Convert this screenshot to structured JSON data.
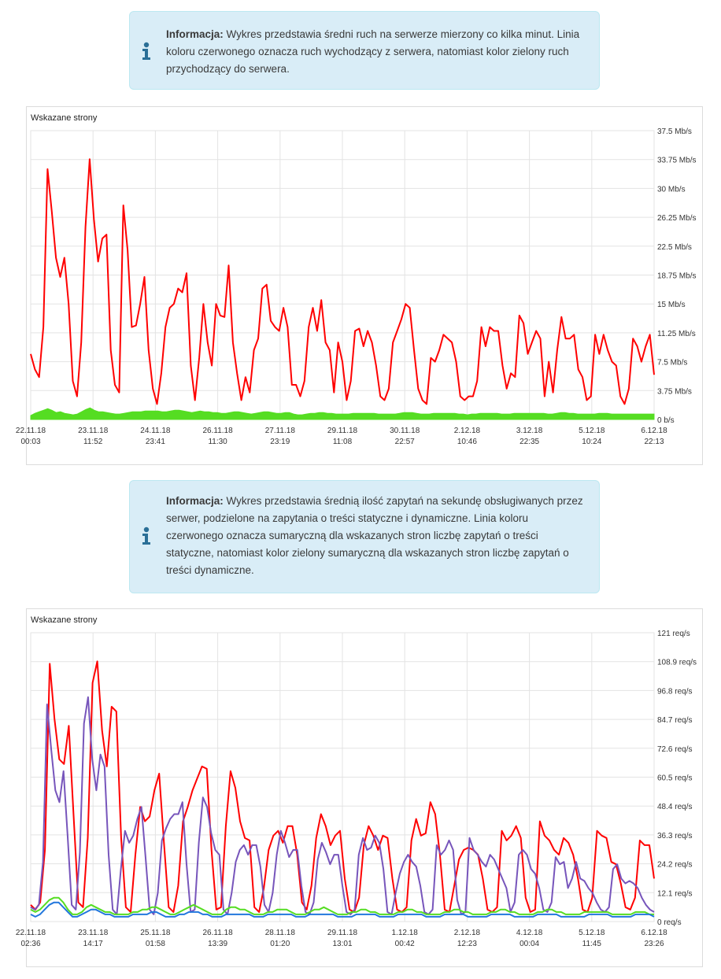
{
  "info1": {
    "label": "Informacja:",
    "text": "Wykres przedstawia średni ruch na serwerze mierzony co kilka minut. Linia koloru czerwonego oznacza ruch wychodzący z serwera, natomiast kolor zielony ruch przychodzący do serwera.",
    "icon": "info-icon"
  },
  "info2": {
    "label": "Informacja:",
    "text": "Wykres przedstawia średnią ilość zapytań na sekundę obsługiwanych przez serwer, podzielone na zapytania o treści statyczne i dynamiczne. Linia koloru czerwonego oznacza sumaryczną dla wskazanych stron liczbę zapytań o treści statyczne, natomiast kolor zielony sumaryczną dla wskazanych stron liczbę zapytań o treści dynamiczne.",
    "icon": "info-icon"
  },
  "chart_data": [
    {
      "type": "area",
      "title": "Wskazane strony",
      "unit": "Mb/s",
      "ylim": [
        0,
        37.5
      ],
      "y_ticks": [
        "0 b/s",
        "3.75 Mb/s",
        "7.5 Mb/s",
        "11.25 Mb/s",
        "15 Mb/s",
        "18.75 Mb/s",
        "22.5 Mb/s",
        "26.25 Mb/s",
        "30 Mb/s",
        "33.75 Mb/s",
        "37.5 Mb/s"
      ],
      "x_ticks": [
        [
          "22.11.18",
          "00:03"
        ],
        [
          "23.11.18",
          "11:52"
        ],
        [
          "24.11.18",
          "23:41"
        ],
        [
          "26.11.18",
          "11:30"
        ],
        [
          "27.11.18",
          "23:19"
        ],
        [
          "29.11.18",
          "11:08"
        ],
        [
          "30.11.18",
          "22:57"
        ],
        [
          "2.12.18",
          "10:46"
        ],
        [
          "3.12.18",
          "22:35"
        ],
        [
          "5.12.18",
          "10:24"
        ],
        [
          "6.12.18",
          "22:13"
        ]
      ],
      "grid": true,
      "colors": {
        "outgoing": "#ff0000",
        "incoming": "#55dd22"
      },
      "series": [
        {
          "key": "outgoing",
          "values": [
            8.5,
            6.5,
            5.5,
            12,
            32.5,
            27,
            21,
            18.5,
            21,
            15,
            5,
            3,
            10,
            25,
            33.8,
            26,
            20.5,
            23.5,
            24,
            9,
            4.5,
            3.5,
            27.8,
            22,
            12,
            12.2,
            15,
            18.5,
            9,
            4,
            2,
            6,
            12,
            14.5,
            15,
            17,
            16.5,
            19,
            7,
            2.5,
            8,
            15,
            10,
            7,
            15,
            13.5,
            13.3,
            20,
            10,
            6,
            2.5,
            5.5,
            3.5,
            9,
            10.5,
            17,
            17.5,
            12.8,
            12,
            11.5,
            14.5,
            12,
            4.5,
            4.5,
            3,
            5,
            12,
            14.5,
            11.5,
            15.5,
            10,
            9,
            3.5,
            10,
            7.5,
            2.5,
            5,
            11.5,
            11.8,
            9.5,
            11.5,
            10,
            7,
            3,
            2.5,
            4,
            10,
            11.5,
            13,
            15,
            14.5,
            9,
            4,
            2.5,
            2,
            8,
            7.5,
            9,
            11,
            10.5,
            10,
            7.5,
            3,
            2.5,
            3,
            3,
            5,
            12,
            9.5,
            12,
            11.5,
            11.5,
            7,
            4,
            6,
            5.5,
            13.5,
            12.5,
            8.5,
            10,
            11.5,
            10.5,
            3,
            7.5,
            3.5,
            9,
            13.3,
            10.5,
            10.5,
            11,
            6.5,
            5.5,
            2.5,
            3,
            11,
            8.5,
            11,
            9,
            7.5,
            7,
            3,
            2,
            4,
            10.5,
            9.5,
            7.5,
            9.5,
            11,
            5.8
          ]
        },
        {
          "key": "incoming",
          "values": [
            0.5,
            0.8,
            1,
            1.2,
            1.4,
            1.2,
            0.9,
            1,
            0.8,
            0.7,
            0.6,
            0.7,
            1,
            1.3,
            1.5,
            1.2,
            1,
            1,
            0.9,
            0.8,
            0.7,
            0.7,
            0.8,
            0.9,
            1,
            1,
            1,
            1.1,
            1.1,
            1.1,
            1.1,
            1,
            1,
            1.1,
            1.2,
            1.2,
            1.1,
            1,
            0.9,
            1,
            1.1,
            1,
            1,
            0.9,
            0.9,
            0.8,
            0.8,
            0.9,
            1,
            1,
            0.9,
            0.8,
            0.7,
            0.8,
            0.9,
            1,
            1,
            0.9,
            0.8,
            0.8,
            0.9,
            0.9,
            0.7,
            0.6,
            0.6,
            0.7,
            0.8,
            0.8,
            0.9,
            0.9,
            0.8,
            0.8,
            0.7,
            0.7,
            0.7,
            0.7,
            0.8,
            0.8,
            0.8,
            0.8,
            0.8,
            0.8,
            0.7,
            0.7,
            0.7,
            0.7,
            0.7,
            0.8,
            0.9,
            0.9,
            0.9,
            0.8,
            0.7,
            0.7,
            0.7,
            0.8,
            0.8,
            0.8,
            0.8,
            0.8,
            0.8,
            0.7,
            0.7,
            0.6,
            0.7,
            0.7,
            0.8,
            0.8,
            0.8,
            0.8,
            0.8,
            0.7,
            0.7,
            0.7,
            0.8,
            0.8,
            0.8,
            0.8,
            0.8,
            0.8,
            0.8,
            0.8,
            0.7,
            0.7,
            0.8,
            0.9,
            0.9,
            0.8,
            0.8,
            0.7,
            0.7,
            0.7,
            0.7,
            0.7,
            0.8,
            0.8,
            0.8,
            0.7,
            0.7,
            0.7,
            0.7,
            0.7,
            0.7,
            0.7,
            0.7,
            0.7,
            0.7,
            0.7
          ]
        }
      ]
    },
    {
      "type": "line",
      "title": "Wskazane strony",
      "unit": "req/s",
      "ylim": [
        0,
        121
      ],
      "y_ticks": [
        "0 req/s",
        "12.1 req/s",
        "24.2 req/s",
        "36.3 req/s",
        "48.4 req/s",
        "60.5 req/s",
        "72.6 req/s",
        "84.7 req/s",
        "96.8 req/s",
        "108.9 req/s",
        "121 req/s"
      ],
      "x_ticks": [
        [
          "22.11.18",
          "02:36"
        ],
        [
          "23.11.18",
          "14:17"
        ],
        [
          "25.11.18",
          "01:58"
        ],
        [
          "26.11.18",
          "13:39"
        ],
        [
          "28.11.18",
          "01:20"
        ],
        [
          "29.11.18",
          "13:01"
        ],
        [
          "1.12.18",
          "00:42"
        ],
        [
          "2.12.18",
          "12:23"
        ],
        [
          "4.12.18",
          "00:04"
        ],
        [
          "5.12.18",
          "11:45"
        ],
        [
          "6.12.18",
          "23:26"
        ]
      ],
      "grid": true,
      "colors": {
        "total": "#ff0000",
        "purple": "#7755bb",
        "green": "#55dd22",
        "blue": "#2277dd"
      },
      "series": [
        {
          "key": "total",
          "values": [
            7,
            5,
            8,
            30,
            108,
            85,
            68,
            66,
            82,
            45,
            8,
            6,
            35,
            100,
            109,
            80,
            65,
            90,
            88,
            35,
            6,
            4,
            28,
            48,
            42,
            44,
            55,
            62,
            33,
            6,
            4,
            15,
            42,
            48,
            55,
            60,
            65,
            64,
            30,
            5,
            6,
            40,
            63,
            56,
            42,
            35,
            34,
            6,
            4,
            14,
            30,
            36,
            38,
            33,
            40,
            40,
            28,
            8,
            5,
            15,
            35,
            45,
            40,
            32,
            36,
            38,
            18,
            5,
            4,
            10,
            32,
            40,
            36,
            30,
            36,
            35,
            18,
            5,
            4,
            6,
            34,
            43,
            36,
            37,
            50,
            45,
            28,
            5,
            4,
            15,
            26,
            30,
            31,
            30,
            28,
            18,
            5,
            4,
            6,
            38,
            34,
            36,
            40,
            35,
            10,
            4,
            5,
            42,
            36,
            34,
            30,
            28,
            35,
            33,
            28,
            18,
            5,
            4,
            10,
            38,
            36,
            35,
            25,
            24,
            16,
            6,
            5,
            10,
            34,
            32,
            32,
            18
          ]
        },
        {
          "key": "purple",
          "values": [
            6,
            5,
            7,
            25,
            91,
            72,
            55,
            50,
            63,
            36,
            7,
            5,
            29,
            83,
            94,
            68,
            55,
            70,
            65,
            28,
            5,
            3,
            22,
            38,
            33,
            36,
            43,
            48,
            27,
            5,
            3,
            12,
            34,
            39,
            43,
            45,
            45,
            50,
            24,
            4,
            5,
            33,
            52,
            48,
            37,
            30,
            28,
            5,
            3,
            12,
            25,
            30,
            32,
            28,
            32,
            32,
            23,
            7,
            4,
            12,
            28,
            38,
            33,
            27,
            30,
            30,
            15,
            4,
            3,
            8,
            26,
            33,
            29,
            24,
            28,
            28,
            15,
            4,
            3,
            5,
            28,
            35,
            30,
            31,
            36,
            33,
            22,
            4,
            3,
            12,
            20,
            25,
            28,
            25,
            23,
            15,
            4,
            3,
            5,
            32,
            28,
            30,
            34,
            30,
            9,
            3,
            4,
            35,
            30,
            28,
            25,
            23,
            28,
            26,
            22,
            18,
            14,
            4,
            8,
            28,
            30,
            28,
            22,
            20,
            14,
            5,
            4,
            8,
            27,
            24,
            25,
            14,
            18,
            25,
            18,
            17,
            14,
            12,
            8,
            5,
            4,
            6,
            22,
            24,
            18,
            16,
            17,
            16,
            14,
            10,
            7,
            5,
            4
          ]
        },
        {
          "key": "green",
          "values": [
            5,
            4,
            5,
            7,
            9,
            10,
            10,
            8,
            5,
            3,
            3,
            4,
            6,
            7,
            6,
            5,
            4,
            4,
            3,
            3,
            3,
            3,
            4,
            4,
            5,
            5,
            6,
            6,
            5,
            4,
            3,
            3,
            4,
            5,
            6,
            7,
            6,
            5,
            4,
            3,
            3,
            3,
            5,
            6,
            6,
            5,
            5,
            4,
            3,
            3,
            3,
            4,
            4,
            5,
            5,
            5,
            4,
            3,
            3,
            3,
            4,
            5,
            5,
            6,
            5,
            4,
            3,
            3,
            3,
            4,
            4,
            5,
            5,
            4,
            4,
            3,
            3,
            3,
            3,
            4,
            4,
            5,
            5,
            4,
            4,
            3,
            3,
            3,
            3,
            4,
            4,
            5,
            5,
            4,
            4,
            3,
            3,
            3,
            3,
            4,
            4,
            5,
            5,
            4,
            4,
            3,
            3,
            3,
            3,
            4,
            4,
            5,
            5,
            4,
            4,
            3,
            3,
            3,
            3,
            4,
            4,
            4,
            4,
            4,
            4,
            3,
            3,
            3,
            3,
            3,
            4,
            4,
            4,
            3,
            3
          ]
        },
        {
          "key": "blue",
          "values": [
            3,
            2,
            3,
            5,
            7,
            8,
            8,
            6,
            4,
            2,
            2,
            3,
            4,
            5,
            5,
            4,
            3,
            3,
            2,
            2,
            2,
            2,
            3,
            3,
            3,
            3,
            4,
            4,
            3,
            2,
            2,
            2,
            3,
            3,
            4,
            4,
            4,
            3,
            3,
            2,
            2,
            2,
            3,
            3,
            3,
            3,
            3,
            3,
            2,
            2,
            2,
            3,
            3,
            3,
            3,
            3,
            3,
            2,
            2,
            2,
            3,
            3,
            3,
            3,
            3,
            3,
            2,
            2,
            2,
            2,
            3,
            3,
            3,
            3,
            3,
            2,
            2,
            2,
            2,
            3,
            3,
            3,
            3,
            3,
            3,
            2,
            2,
            2,
            2,
            3,
            3,
            3,
            3,
            3,
            2,
            2,
            2,
            2,
            2,
            3,
            3,
            3,
            3,
            3,
            2,
            2,
            2,
            2,
            2,
            3,
            3,
            3,
            3,
            3,
            2,
            2,
            2,
            2,
            2,
            2,
            3,
            3,
            3,
            3,
            3,
            2,
            2,
            2,
            2,
            2,
            3,
            3,
            3,
            3,
            2
          ]
        }
      ]
    }
  ]
}
